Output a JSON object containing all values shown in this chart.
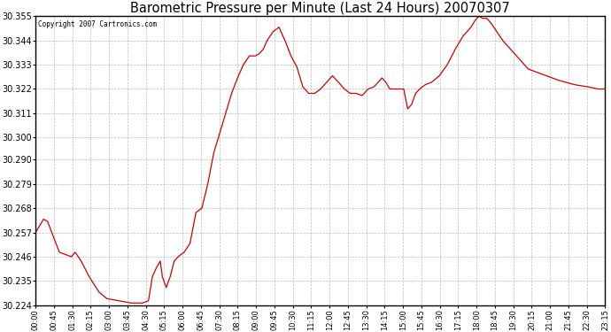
{
  "title": "Barometric Pressure per Minute (Last 24 Hours) 20070307",
  "copyright": "Copyright 2007 Cartronics.com",
  "line_color": "#cc0000",
  "background_color": "#ffffff",
  "plot_background": "#ffffff",
  "grid_color": "#bbbbbb",
  "ylim": [
    30.224,
    30.355
  ],
  "yticks": [
    30.224,
    30.235,
    30.246,
    30.257,
    30.268,
    30.279,
    30.29,
    30.3,
    30.311,
    30.322,
    30.333,
    30.344,
    30.355
  ],
  "xtick_labels": [
    "00:00",
    "00:45",
    "01:30",
    "02:15",
    "03:00",
    "03:45",
    "04:30",
    "05:15",
    "06:00",
    "06:45",
    "07:30",
    "08:15",
    "09:00",
    "09:45",
    "10:30",
    "11:15",
    "12:00",
    "12:45",
    "13:30",
    "14:15",
    "15:00",
    "15:45",
    "16:30",
    "17:15",
    "18:00",
    "18:45",
    "19:30",
    "20:15",
    "21:00",
    "21:45",
    "22:30",
    "23:15"
  ],
  "keypoints": [
    [
      0,
      30.257
    ],
    [
      20,
      30.263
    ],
    [
      30,
      30.262
    ],
    [
      45,
      30.255
    ],
    [
      60,
      30.248
    ],
    [
      90,
      30.246
    ],
    [
      100,
      30.248
    ],
    [
      115,
      30.244
    ],
    [
      135,
      30.237
    ],
    [
      160,
      30.23
    ],
    [
      180,
      30.227
    ],
    [
      210,
      30.226
    ],
    [
      240,
      30.225
    ],
    [
      270,
      30.225
    ],
    [
      285,
      30.226
    ],
    [
      295,
      30.237
    ],
    [
      305,
      30.241
    ],
    [
      315,
      30.244
    ],
    [
      320,
      30.237
    ],
    [
      330,
      30.232
    ],
    [
      340,
      30.237
    ],
    [
      350,
      30.244
    ],
    [
      360,
      30.246
    ],
    [
      375,
      30.248
    ],
    [
      390,
      30.252
    ],
    [
      405,
      30.266
    ],
    [
      420,
      30.268
    ],
    [
      435,
      30.279
    ],
    [
      450,
      30.293
    ],
    [
      465,
      30.302
    ],
    [
      480,
      30.311
    ],
    [
      495,
      30.32
    ],
    [
      510,
      30.327
    ],
    [
      525,
      30.333
    ],
    [
      540,
      30.337
    ],
    [
      555,
      30.337
    ],
    [
      565,
      30.338
    ],
    [
      575,
      30.34
    ],
    [
      585,
      30.344
    ],
    [
      600,
      30.348
    ],
    [
      615,
      30.35
    ],
    [
      620,
      30.348
    ],
    [
      630,
      30.344
    ],
    [
      645,
      30.337
    ],
    [
      660,
      30.332
    ],
    [
      675,
      30.323
    ],
    [
      690,
      30.32
    ],
    [
      705,
      30.32
    ],
    [
      720,
      30.322
    ],
    [
      730,
      30.324
    ],
    [
      735,
      30.325
    ],
    [
      750,
      30.328
    ],
    [
      765,
      30.325
    ],
    [
      780,
      30.322
    ],
    [
      795,
      30.32
    ],
    [
      810,
      30.32
    ],
    [
      825,
      30.319
    ],
    [
      840,
      30.322
    ],
    [
      855,
      30.323
    ],
    [
      865,
      30.325
    ],
    [
      875,
      30.327
    ],
    [
      885,
      30.325
    ],
    [
      895,
      30.322
    ],
    [
      910,
      30.322
    ],
    [
      930,
      30.322
    ],
    [
      940,
      30.313
    ],
    [
      950,
      30.315
    ],
    [
      960,
      30.32
    ],
    [
      970,
      30.322
    ],
    [
      985,
      30.324
    ],
    [
      1000,
      30.325
    ],
    [
      1020,
      30.328
    ],
    [
      1040,
      30.333
    ],
    [
      1060,
      30.34
    ],
    [
      1080,
      30.346
    ],
    [
      1100,
      30.35
    ],
    [
      1110,
      30.353
    ],
    [
      1120,
      30.355
    ],
    [
      1130,
      30.354
    ],
    [
      1140,
      30.354
    ],
    [
      1150,
      30.352
    ],
    [
      1165,
      30.348
    ],
    [
      1180,
      30.344
    ],
    [
      1200,
      30.34
    ],
    [
      1215,
      30.337
    ],
    [
      1230,
      30.334
    ],
    [
      1245,
      30.331
    ],
    [
      1260,
      30.33
    ],
    [
      1275,
      30.329
    ],
    [
      1290,
      30.328
    ],
    [
      1305,
      30.327
    ],
    [
      1320,
      30.326
    ],
    [
      1340,
      30.325
    ],
    [
      1360,
      30.324
    ],
    [
      1395,
      30.323
    ],
    [
      1420,
      30.322
    ],
    [
      1439,
      30.322
    ]
  ]
}
